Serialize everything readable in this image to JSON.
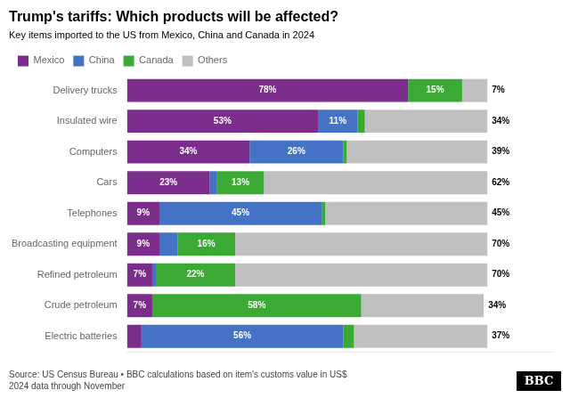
{
  "chart_data": {
    "type": "bar",
    "orientation": "horizontal",
    "stacked": true,
    "title": "Trump's tariffs: Which products will be affected?",
    "subtitle": "Key items imported to the US from Mexico, China and Canada in 2024",
    "categories": [
      "Delivery trucks",
      "Insulated wire",
      "Computers",
      "Cars",
      "Telephones",
      "Broadcasting equipment",
      "Refined petroleum",
      "Crude petroleum",
      "Electric batteries"
    ],
    "series": [
      {
        "name": "Mexico",
        "color": "#7b2d8b",
        "values": [
          78,
          53,
          34,
          23,
          9,
          9,
          7,
          7,
          4
        ],
        "value_labels": [
          "78%",
          "53%",
          "34%",
          "23%",
          "9%",
          "9%",
          "7%",
          "7%",
          null
        ]
      },
      {
        "name": "China",
        "color": "#4472c4",
        "values": [
          0,
          11,
          26,
          2,
          45,
          5,
          1,
          0,
          56
        ],
        "value_labels": [
          null,
          "11%",
          "26%",
          null,
          "45%",
          null,
          null,
          null,
          "56%"
        ]
      },
      {
        "name": "Canada",
        "color": "#3aaa35",
        "values": [
          15,
          2,
          1,
          13,
          1,
          16,
          22,
          58,
          3
        ],
        "value_labels": [
          "15%",
          null,
          null,
          "13%",
          null,
          "16%",
          "22%",
          "58%",
          null
        ]
      },
      {
        "name": "Others",
        "color": "#c0c0c0",
        "values": [
          7,
          34,
          39,
          62,
          45,
          70,
          70,
          34,
          37
        ],
        "value_labels": [
          "7%",
          "34%",
          "39%",
          "62%",
          "45%",
          "70%",
          "70%",
          "34%",
          "37%"
        ]
      }
    ],
    "xlim": [
      0,
      118
    ],
    "xticks": [],
    "tick_labels": "y",
    "grid": false,
    "legend": "top",
    "annotations": [
      "Source: US Census Bureau • BBC calculations based on item's customs value in US$\n2024 data through November",
      "BBC"
    ]
  }
}
